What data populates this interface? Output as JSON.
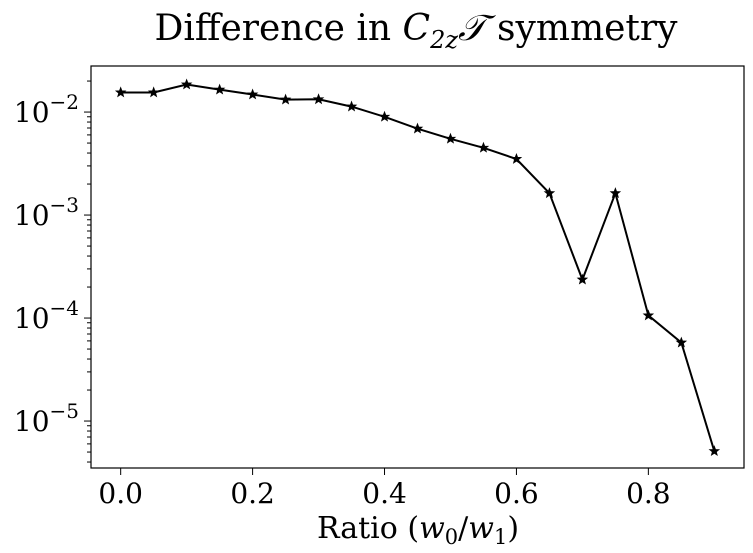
{
  "chart_data": {
    "type": "line",
    "title_parts": {
      "prefix": "Difference in ",
      "symbol": "C",
      "subscript": "2z",
      "operator": "𝒯",
      "suffix": " symmetry"
    },
    "xlabel_parts": {
      "prefix": "Ratio (",
      "w": "w",
      "sub0": "0",
      "slash": "/",
      "sub1": "1",
      "suffix": ")"
    },
    "yscale": "log",
    "xlim": [
      -0.045,
      0.945
    ],
    "ylim": [
      3.5e-06,
      0.028
    ],
    "xticks": [
      0.0,
      0.2,
      0.4,
      0.6,
      0.8
    ],
    "xtick_labels": [
      "0.0",
      "0.2",
      "0.4",
      "0.6",
      "0.8"
    ],
    "yticks": [
      0.01,
      0.001,
      0.0001,
      1e-05
    ],
    "ytick_labels": [
      {
        "base": "10",
        "exp": "−2"
      },
      {
        "base": "10",
        "exp": "−3"
      },
      {
        "base": "10",
        "exp": "−4"
      },
      {
        "base": "10",
        "exp": "−5"
      }
    ],
    "marker": "star",
    "color": "#000000",
    "series": [
      {
        "name": "difference",
        "x": [
          0.0,
          0.05,
          0.1,
          0.15,
          0.2,
          0.25,
          0.3,
          0.35,
          0.4,
          0.45,
          0.5,
          0.55,
          0.6,
          0.65,
          0.7,
          0.75,
          0.8,
          0.85,
          0.9
        ],
        "y": [
          0.0155,
          0.0155,
          0.0185,
          0.0165,
          0.0148,
          0.0132,
          0.0133,
          0.0113,
          0.009,
          0.0069,
          0.0055,
          0.0045,
          0.0035,
          0.00163,
          0.000236,
          0.00163,
          0.000106,
          5.77e-05,
          5.1e-06
        ]
      }
    ]
  }
}
